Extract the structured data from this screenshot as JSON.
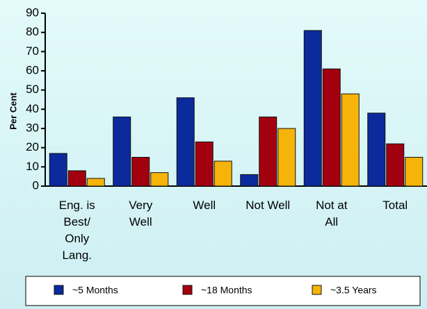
{
  "chart_data": {
    "type": "bar",
    "y_label": "Per Cent",
    "categories": [
      "Eng. is Best/ Only Lang.",
      "Very Well",
      "Well",
      "Not Well",
      "Not at All",
      "Total"
    ],
    "series": [
      {
        "name": "~5 Months",
        "color": "#0b2a9c",
        "values": [
          17,
          36,
          46,
          6,
          81,
          38
        ]
      },
      {
        "name": "~18 Months",
        "color": "#a3000f",
        "values": [
          8,
          15,
          23,
          36,
          61,
          22
        ]
      },
      {
        "name": "~3.5 Years",
        "color": "#f6b40a",
        "values": [
          4,
          7,
          13,
          30,
          48,
          15
        ]
      }
    ],
    "ylim": [
      0,
      90
    ],
    "yticks": [
      0,
      10,
      20,
      30,
      40,
      50,
      60,
      70,
      80,
      90
    ],
    "grid": false
  }
}
